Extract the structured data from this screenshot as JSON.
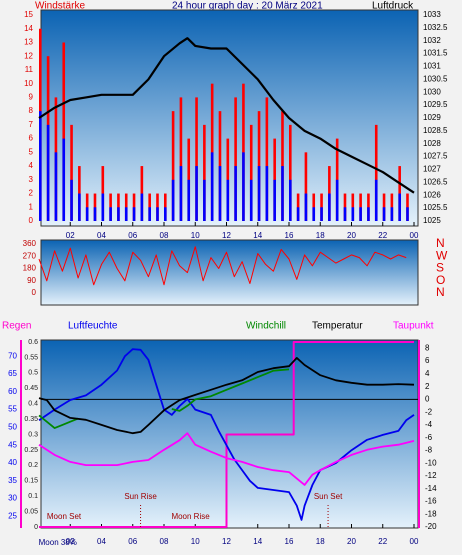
{
  "chart_data": [
    {
      "type": "combo",
      "title": "24 hour graph day : 20 März 2021",
      "ylabel": "Windstärke",
      "y2label": "Luftdruck",
      "xlim": [
        0,
        24
      ],
      "xticks": [
        {
          "value": 2,
          "label": "02"
        },
        {
          "value": 4,
          "label": "04"
        },
        {
          "value": 6,
          "label": "06"
        },
        {
          "value": 8,
          "label": "08"
        },
        10,
        12,
        14,
        16,
        18,
        20,
        22,
        {
          "value": 24,
          "label": "00"
        }
      ],
      "ylim": [
        0,
        15
      ],
      "yticks": [
        0,
        1,
        2,
        3,
        4,
        5,
        6,
        7,
        8,
        9,
        10,
        11,
        12,
        13,
        14,
        15
      ],
      "y2lim": [
        1025,
        1033
      ],
      "y2ticks": [
        1025,
        1025.5,
        1026,
        1026.5,
        1027,
        1027.5,
        1028,
        1028.5,
        1029,
        1029.5,
        1030,
        1030.5,
        1031,
        1031.5,
        1032,
        1032.5,
        1033
      ],
      "series": [
        {
          "type": "bar",
          "color": "#ff0000",
          "x": [
            0,
            0.5,
            1,
            1.5,
            2,
            2.5,
            3,
            3.5,
            4,
            4.5,
            5,
            5.5,
            6,
            6.5,
            7,
            7.5,
            8,
            8.5,
            9,
            9.5,
            10,
            10.5,
            11,
            11.5,
            12,
            12.5,
            13,
            13.5,
            14,
            14.5,
            15,
            15.5,
            16,
            16.5,
            17,
            17.5,
            18,
            18.5,
            19,
            19.5,
            20,
            20.5,
            21,
            21.5,
            22,
            22.5,
            23,
            23.5
          ],
          "values": [
            14,
            12,
            9,
            13,
            7,
            4,
            2,
            2,
            4,
            2,
            2,
            2,
            2,
            4,
            2,
            2,
            2,
            8,
            9,
            6,
            9,
            7,
            10,
            8,
            6,
            9,
            10,
            7,
            8,
            9,
            6,
            8,
            7,
            2,
            5,
            2,
            2,
            4,
            6,
            2,
            2,
            2,
            2,
            7,
            2,
            2,
            4,
            2
          ]
        },
        {
          "type": "bar",
          "color": "#0000ff",
          "x": [
            0,
            0.5,
            1,
            1.5,
            2,
            2.5,
            3,
            3.5,
            4,
            4.5,
            5,
            5.5,
            6,
            6.5,
            7,
            7.5,
            8,
            8.5,
            9,
            9.5,
            10,
            10.5,
            11,
            11.5,
            12,
            12.5,
            13,
            13.5,
            14,
            14.5,
            15,
            15.5,
            16,
            16.5,
            17,
            17.5,
            18,
            18.5,
            19,
            19.5,
            20,
            20.5,
            21,
            21.5,
            22,
            22.5,
            23,
            23.5
          ],
          "values": [
            8,
            7,
            5,
            6,
            3,
            2,
            1,
            1,
            2,
            1,
            1,
            1,
            1,
            2,
            1,
            1,
            1,
            3,
            4,
            3,
            4,
            3,
            5,
            4,
            3,
            4,
            5,
            3,
            4,
            4,
            3,
            4,
            3,
            1,
            2,
            1,
            1,
            2,
            3,
            1,
            1,
            1,
            1,
            3,
            1,
            1,
            2,
            1
          ]
        },
        {
          "type": "line",
          "axis": "y2",
          "color": "#000000",
          "x": [
            0,
            1,
            2,
            3,
            4,
            5,
            6,
            7,
            8,
            9,
            9.5,
            10,
            11,
            12,
            13,
            14,
            15,
            16,
            17,
            18,
            19,
            20,
            21,
            22,
            23,
            24
          ],
          "values": [
            1029.0,
            1029.4,
            1029.7,
            1029.8,
            1029.9,
            1029.9,
            1029.9,
            1030.5,
            1031.4,
            1031.9,
            1032.1,
            1031.8,
            1031.7,
            1031.7,
            1031.1,
            1030.5,
            1029.7,
            1029.0,
            1028.5,
            1028.2,
            1027.8,
            1027.5,
            1027.2,
            1026.9,
            1026.5,
            1026.1
          ]
        }
      ]
    },
    {
      "type": "line",
      "xlim": [
        0,
        24
      ],
      "ylim": [
        0,
        360
      ],
      "yticks": [
        0,
        90,
        180,
        270,
        360
      ],
      "y2lim": [
        0,
        360
      ],
      "y2ticks": [
        {
          "value": 360,
          "label": "N"
        },
        {
          "value": 270,
          "label": "W"
        },
        {
          "value": 180,
          "label": "S"
        },
        {
          "value": 90,
          "label": "O"
        },
        {
          "value": 0,
          "label": "N"
        }
      ],
      "series": [
        {
          "color": "#ff0000",
          "x": [
            0,
            0.5,
            1,
            1.5,
            2,
            2.5,
            3,
            3.5,
            4,
            4.5,
            5,
            5.5,
            6,
            6.5,
            7,
            7.5,
            8,
            8.5,
            9,
            9.5,
            10,
            10.5,
            11,
            11.5,
            12,
            12.5,
            13,
            13.5,
            14,
            14.5,
            15,
            15.5,
            16,
            16.5,
            17,
            17.5,
            18,
            18.5,
            19,
            19.5,
            20,
            20.5,
            21,
            21.5,
            22,
            22.5,
            23,
            23.5
          ],
          "values": [
            250,
            90,
            310,
            160,
            330,
            110,
            280,
            60,
            210,
            300,
            180,
            90,
            300,
            240,
            120,
            280,
            60,
            310,
            200,
            150,
            340,
            90,
            260,
            180,
            300,
            120,
            230,
            70,
            290,
            210,
            160,
            320,
            250,
            100,
            280,
            200,
            300,
            260,
            220,
            250,
            280,
            260,
            200,
            300,
            280,
            250,
            280,
            260
          ]
        }
      ]
    },
    {
      "type": "line",
      "xlim": [
        0,
        24
      ],
      "xticks": [
        {
          "value": 2,
          "label": "02"
        },
        {
          "value": 4,
          "label": "04"
        },
        {
          "value": 6,
          "label": "06"
        },
        {
          "value": 8,
          "label": "08"
        },
        10,
        12,
        14,
        16,
        18,
        20,
        22,
        {
          "value": 24,
          "label": "00"
        }
      ],
      "ylim": [
        0,
        0.6
      ],
      "yticks": [
        0,
        0.05,
        0.1,
        0.15,
        0.2,
        0.25,
        0.3,
        0.35,
        0.4,
        0.45,
        0.5,
        0.55,
        0.6
      ],
      "y3lim": [
        22,
        74
      ],
      "y3ticks": [
        25,
        30,
        35,
        40,
        45,
        50,
        55,
        60,
        65,
        70
      ],
      "y2lim": [
        -20,
        9
      ],
      "y2ticks": [
        8,
        6,
        4,
        2,
        0,
        -2,
        -4,
        -6,
        -8,
        -10,
        -12,
        -14,
        -16,
        -18,
        -20
      ],
      "series": [
        {
          "name": "Regen",
          "color": "#ff00cc",
          "axis": "y",
          "x": [
            0,
            12,
            12,
            16.3,
            16.3,
            24
          ],
          "values": [
            0,
            0,
            0.3,
            0.3,
            0.6,
            0.6
          ]
        },
        {
          "name": "Luftfeuchte",
          "color": "#0000ee",
          "axis": "y3",
          "x": [
            0,
            1,
            2,
            3,
            4,
            5,
            5.5,
            6,
            6.5,
            7,
            7.5,
            8,
            8.5,
            9,
            9.5,
            10,
            11,
            11.5,
            12,
            12.5,
            13,
            13.5,
            14,
            15,
            16,
            16.5,
            16.8,
            17,
            17.5,
            18,
            19,
            20,
            21,
            22,
            23,
            23.5,
            24
          ],
          "values": [
            52,
            55,
            57.7,
            59,
            62,
            66,
            70,
            72,
            71.8,
            69,
            62,
            55,
            53.5,
            56,
            58,
            55,
            53.5,
            49,
            45,
            41,
            38,
            35,
            33,
            32.4,
            31.8,
            28,
            24,
            28,
            33.8,
            38,
            40,
            43.6,
            46.5,
            47.9,
            49,
            52,
            53.5
          ]
        },
        {
          "name": "Windchill",
          "color": "#008800",
          "axis": "y2",
          "x": [
            0,
            0.5,
            1,
            1.5,
            2,
            2.5,
            3,
            8.5,
            9,
            9.5,
            10,
            11,
            12,
            13,
            14,
            14.5,
            15,
            16
          ],
          "values": [
            -2.5,
            -3.5,
            -4.5,
            -4,
            -3.5,
            -3,
            null,
            -1.5,
            -1.8,
            -1,
            0,
            0.5,
            1.5,
            2.5,
            3.5,
            4,
            4.5,
            4.7
          ]
        },
        {
          "name": "Temperatur",
          "color": "#000000",
          "axis": "y2",
          "x": [
            0,
            0.5,
            1,
            2,
            3,
            4,
            5,
            6,
            6.5,
            7,
            8,
            9,
            10,
            11,
            12,
            13,
            14,
            15,
            16,
            16.5,
            17,
            18,
            19,
            20,
            21,
            22,
            23,
            24
          ],
          "values": [
            0.2,
            -0.1,
            -1.7,
            -2.9,
            -3.2,
            -4,
            -4.8,
            -5.3,
            -5.1,
            -4,
            -1.7,
            -0.1,
            0.7,
            1.5,
            2.3,
            3,
            4.3,
            4.9,
            5.2,
            6.5,
            5.4,
            3.8,
            3,
            2.6,
            2.3,
            2.3,
            2.4,
            2.3
          ]
        },
        {
          "name": "Taupunkt",
          "color": "#ff00ff",
          "axis": "y2",
          "x": [
            0,
            1,
            2,
            3,
            5,
            6,
            7,
            8,
            9,
            9.5,
            10,
            11,
            12,
            13,
            14,
            15,
            16,
            17,
            17.5,
            18,
            19,
            20,
            21,
            22,
            23,
            24
          ],
          "values": [
            -7.1,
            -8.7,
            -9.8,
            -10.3,
            -10.3,
            -9.8,
            -9.5,
            -7.9,
            -6.4,
            -5.3,
            -7.1,
            -8.2,
            -9.2,
            -9.8,
            -10.6,
            -11.1,
            -11.4,
            -13.4,
            -11.8,
            -11.1,
            -9.8,
            -8.7,
            -7.9,
            -7.4,
            -7.1,
            -6.5
          ]
        }
      ],
      "annotations": [
        {
          "text": "Moon Set",
          "x": 1.6
        },
        {
          "text": "Sun Rise",
          "x": 6.5,
          "line": true
        },
        {
          "text": "Moon Rise",
          "x": 9.7
        },
        {
          "text": "Sun Set",
          "x": 18.5,
          "line": true
        },
        {
          "text": "Moon 38%",
          "x": 1.2
        }
      ]
    }
  ]
}
